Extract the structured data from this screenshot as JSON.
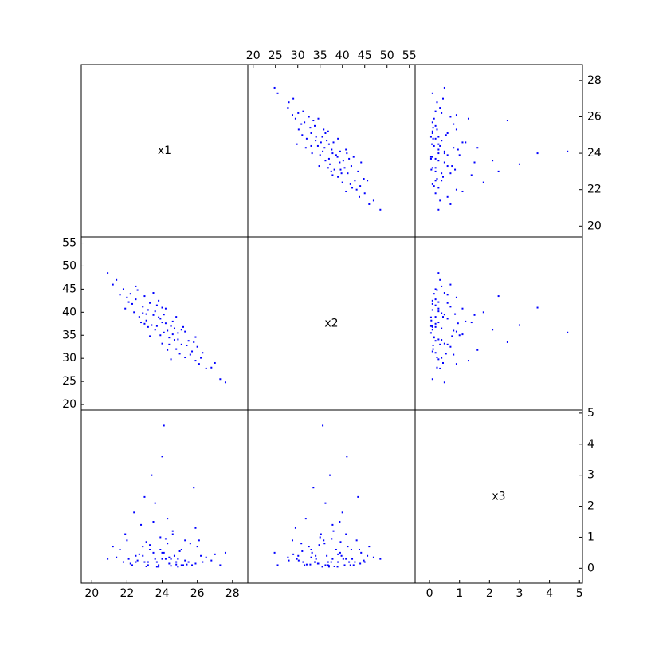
{
  "chart_data": {
    "type": "scatter_matrix",
    "color": "#0000ff",
    "variables": [
      {
        "name": "x1",
        "lim": [
          19.4,
          28.87
        ],
        "ticks": [
          20,
          22,
          24,
          26,
          28
        ],
        "values": [
          24.0,
          23.2,
          25.1,
          22.5,
          24.6,
          23.8,
          26.2,
          21.8,
          24.3,
          23.5,
          25.7,
          22.9,
          24.9,
          23.0,
          25.3,
          22.2,
          24.1,
          26.8,
          23.6,
          24.8,
          21.4,
          25.9,
          23.3,
          24.5,
          22.7,
          25.5,
          23.9,
          24.2,
          27.3,
          22.0,
          24.7,
          23.1,
          25.0,
          23.7,
          26.0,
          22.4,
          24.4,
          20.9,
          25.2,
          23.4,
          24.0,
          26.5,
          22.6,
          24.6,
          23.8,
          25.6,
          22.9,
          24.9,
          21.6,
          25.8,
          23.2,
          24.3,
          27.0,
          22.3,
          24.2,
          23.6,
          25.4,
          21.2,
          24.7,
          23.0,
          26.3,
          23.9,
          24.5,
          22.8,
          25.1,
          23.5,
          24.1,
          26.1,
          22.1,
          24.8,
          23.3,
          25.9,
          21.9,
          24.4,
          23.7,
          27.6,
          22.5,
          24.0,
          25.3,
          23.1
        ]
      },
      {
        "name": "x2",
        "lim": [
          18.8,
          56.3
        ],
        "ticks": [
          20,
          25,
          30,
          35,
          40,
          45,
          50,
          55
        ],
        "values": [
          37.8,
          40.5,
          33.0,
          42.8,
          35.2,
          38.9,
          30.1,
          45.0,
          36.0,
          39.4,
          31.5,
          41.2,
          34.1,
          37.5,
          35.8,
          44.0,
          39.5,
          28.0,
          36.2,
          32.0,
          47.0,
          29.5,
          42.0,
          37.0,
          39.0,
          33.8,
          35.0,
          40.8,
          25.5,
          43.2,
          36.5,
          38.2,
          31.0,
          41.5,
          32.5,
          40.0,
          34.5,
          48.5,
          36.8,
          37.2,
          33.2,
          27.8,
          44.8,
          38.0,
          42.5,
          30.8,
          39.8,
          35.5,
          43.8,
          33.5,
          36.8,
          31.8,
          29.0,
          41.8,
          37.6,
          40.2,
          32.8,
          46.0,
          34.0,
          43.5,
          31.2,
          38.6,
          29.8,
          37.8,
          36.2,
          44.2,
          35.6,
          28.8,
          42.2,
          39.0,
          34.8,
          34.6,
          40.8,
          33.0,
          37.0,
          24.8,
          45.6,
          41.0,
          30.2,
          39.6
        ]
      },
      {
        "name": "x3",
        "lim": [
          -0.48,
          5.1
        ],
        "ticks": [
          0,
          1,
          2,
          3,
          4,
          5
        ],
        "values": [
          0.3,
          0.1,
          0.6,
          0.2,
          1.1,
          0.05,
          0.4,
          0.2,
          0.8,
          1.5,
          0.1,
          0.7,
          0.3,
          0.2,
          0.9,
          0.15,
          0.5,
          0.25,
          2.1,
          0.12,
          0.35,
          1.3,
          0.6,
          0.08,
          0.45,
          0.2,
          1.0,
          0.3,
          0.1,
          0.9,
          0.4,
          0.06,
          0.55,
          0.2,
          0.7,
          1.8,
          0.15,
          0.3,
          0.1,
          3.0,
          0.5,
          0.35,
          0.25,
          1.2,
          0.1,
          0.8,
          0.4,
          0.05,
          0.6,
          2.6,
          0.2,
          1.6,
          0.45,
          0.1,
          0.95,
          0.3,
          0.12,
          0.7,
          0.4,
          2.3,
          0.2,
          0.6,
          0.3,
          1.4,
          0.1,
          0.5,
          4.6,
          0.9,
          0.3,
          0.2,
          0.75,
          0.15,
          1.1,
          0.35,
          0.05,
          0.5,
          0.4,
          3.6,
          0.25,
          0.85
        ]
      }
    ]
  }
}
